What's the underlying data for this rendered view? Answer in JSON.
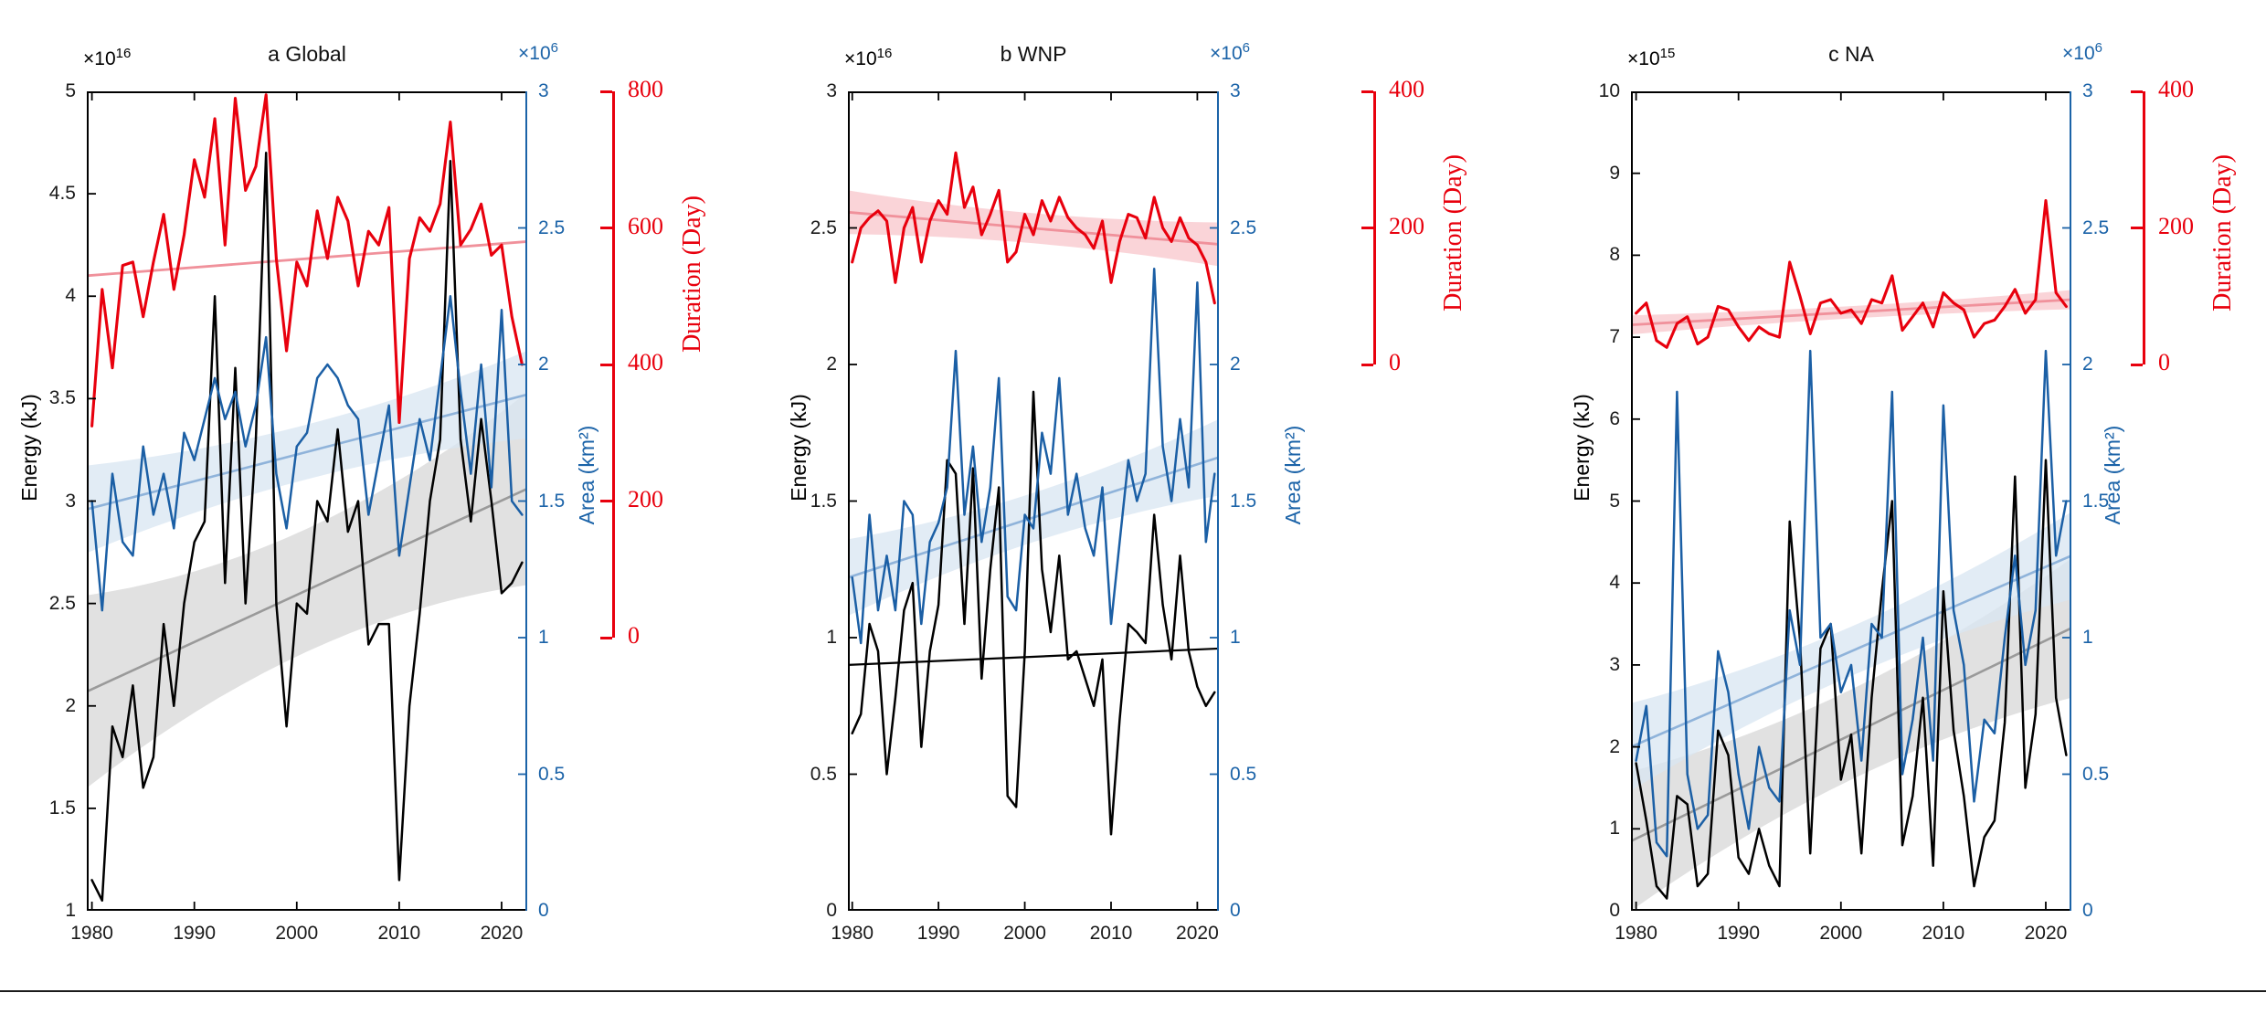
{
  "figure": {
    "background": "#ffffff",
    "colors": {
      "energy_line": "#000000",
      "energy_trend_gray": "#9a9a9a",
      "energy_band": "#d9d9d9",
      "area_line": "#1b5fa5",
      "area_axis": "#1b63a8",
      "area_trend": "#8fb3da",
      "area_band": "#d8e5f1",
      "duration_line": "#e8000d",
      "duration_trend": "#f0919b",
      "duration_band": "#f8c6cb",
      "axis_black": "#000000"
    }
  },
  "chart_data": [
    {
      "panel": "a",
      "type": "line",
      "title": "a Global",
      "years": [
        1980,
        1981,
        1982,
        1983,
        1984,
        1985,
        1986,
        1987,
        1988,
        1989,
        1990,
        1991,
        1992,
        1993,
        1994,
        1995,
        1996,
        1997,
        1998,
        1999,
        2000,
        2001,
        2002,
        2003,
        2004,
        2005,
        2006,
        2007,
        2008,
        2009,
        2010,
        2011,
        2012,
        2013,
        2014,
        2015,
        2016,
        2017,
        2018,
        2019,
        2020,
        2021,
        2022
      ],
      "x_axis": {
        "min": 1979.5,
        "max": 2022.5,
        "ticks": [
          1980,
          1990,
          2000,
          2010,
          2020
        ]
      },
      "energy": {
        "label": "Energy (kJ)",
        "exponent_base": "×10",
        "exponent_power": "16",
        "min": 1,
        "max": 5,
        "ticks": [
          1,
          1.5,
          2,
          2.5,
          3,
          3.5,
          4,
          4.5,
          5
        ],
        "values": [
          1.15,
          1.05,
          1.9,
          1.75,
          2.1,
          1.6,
          1.75,
          2.4,
          2.0,
          2.5,
          2.8,
          2.9,
          4.0,
          2.6,
          3.65,
          2.5,
          3.3,
          4.7,
          2.5,
          1.9,
          2.5,
          2.45,
          3.0,
          2.9,
          3.35,
          2.85,
          3.0,
          2.3,
          2.4,
          2.4,
          1.15,
          2.0,
          2.45,
          3.0,
          3.3,
          4.66,
          3.3,
          2.9,
          3.4,
          3.0,
          2.55,
          2.6,
          2.7
        ],
        "trend": {
          "start": 2.07,
          "end": 3.06,
          "band_half_mid": 0.3,
          "band_half_end": 0.47,
          "band": true,
          "color": "gray"
        }
      },
      "area": {
        "label": "Area (km²)",
        "exponent_base": "×10",
        "exponent_power": "6",
        "min": 0,
        "max": 3,
        "ticks": [
          0,
          0.5,
          1,
          1.5,
          2,
          2.5,
          3
        ],
        "values": [
          1.5,
          1.1,
          1.6,
          1.35,
          1.3,
          1.7,
          1.45,
          1.6,
          1.4,
          1.75,
          1.65,
          1.8,
          1.95,
          1.8,
          1.9,
          1.7,
          1.85,
          2.1,
          1.6,
          1.4,
          1.7,
          1.75,
          1.95,
          2.0,
          1.95,
          1.85,
          1.8,
          1.45,
          1.65,
          1.85,
          1.3,
          1.55,
          1.8,
          1.65,
          1.95,
          2.25,
          1.9,
          1.6,
          2.0,
          1.55,
          2.2,
          1.5,
          1.45
        ],
        "trend": {
          "start": 1.47,
          "end": 1.89,
          "band_half_mid": 0.1,
          "band_half_end": 0.16,
          "band": true
        }
      },
      "duration": {
        "label": "Duration (Day)",
        "min": 0,
        "max": 800,
        "ticks": [
          0,
          200,
          400,
          600,
          800
        ],
        "axis_zero_at_area": 1,
        "axis_top_at_area": 3,
        "values": [
          310,
          510,
          395,
          545,
          550,
          470,
          550,
          620,
          510,
          590,
          700,
          645,
          760,
          575,
          790,
          655,
          690,
          795,
          555,
          420,
          550,
          515,
          625,
          555,
          645,
          610,
          515,
          595,
          575,
          630,
          315,
          555,
          615,
          595,
          635,
          755,
          575,
          598,
          635,
          560,
          575,
          470,
          400
        ],
        "trend": {
          "start": 530,
          "end": 580,
          "band_half_mid": 0,
          "band_half_end": 0,
          "band": false
        }
      }
    },
    {
      "panel": "b",
      "type": "line",
      "title": "b WNP",
      "years": [
        1980,
        1981,
        1982,
        1983,
        1984,
        1985,
        1986,
        1987,
        1988,
        1989,
        1990,
        1991,
        1992,
        1993,
        1994,
        1995,
        1996,
        1997,
        1998,
        1999,
        2000,
        2001,
        2002,
        2003,
        2004,
        2005,
        2006,
        2007,
        2008,
        2009,
        2010,
        2011,
        2012,
        2013,
        2014,
        2015,
        2016,
        2017,
        2018,
        2019,
        2020,
        2021,
        2022
      ],
      "x_axis": {
        "min": 1979.5,
        "max": 2022.5,
        "ticks": [
          1980,
          1990,
          2000,
          2010,
          2020
        ]
      },
      "energy": {
        "label": "Energy (kJ)",
        "exponent_base": "×10",
        "exponent_power": "16",
        "min": 0,
        "max": 3,
        "ticks": [
          0,
          0.5,
          1,
          1.5,
          2,
          2.5,
          3
        ],
        "values": [
          0.65,
          0.72,
          1.05,
          0.95,
          0.5,
          0.78,
          1.1,
          1.2,
          0.6,
          0.95,
          1.12,
          1.65,
          1.6,
          1.05,
          1.62,
          0.85,
          1.25,
          1.55,
          0.42,
          0.38,
          0.95,
          1.9,
          1.25,
          1.02,
          1.3,
          0.92,
          0.95,
          0.85,
          0.75,
          0.92,
          0.28,
          0.7,
          1.05,
          1.02,
          0.98,
          1.45,
          1.12,
          0.92,
          1.3,
          0.95,
          0.82,
          0.75,
          0.8
        ],
        "trend": {
          "start": 0.9,
          "end": 0.96,
          "band_half_mid": 0,
          "band_half_end": 0,
          "band": false,
          "color": "black"
        }
      },
      "area": {
        "label": "Area (km²)",
        "exponent_base": "×10",
        "exponent_power": "6",
        "min": 0,
        "max": 3,
        "ticks": [
          0,
          0.5,
          1,
          1.5,
          2,
          2.5,
          3
        ],
        "values": [
          1.22,
          0.98,
          1.45,
          1.1,
          1.3,
          1.1,
          1.5,
          1.45,
          1.05,
          1.35,
          1.42,
          1.55,
          2.05,
          1.45,
          1.7,
          1.35,
          1.55,
          1.95,
          1.15,
          1.1,
          1.45,
          1.4,
          1.75,
          1.6,
          1.95,
          1.45,
          1.6,
          1.4,
          1.3,
          1.55,
          1.05,
          1.35,
          1.65,
          1.5,
          1.6,
          2.35,
          1.7,
          1.5,
          1.8,
          1.55,
          2.3,
          1.35,
          1.6
        ],
        "trend": {
          "start": 1.22,
          "end": 1.66,
          "band_half_mid": 0.09,
          "band_half_end": 0.14,
          "band": true
        }
      },
      "duration": {
        "label": "Duration (Day)",
        "min": 0,
        "max": 400,
        "ticks": [
          0,
          200,
          400
        ],
        "axis_zero_at_area": 2,
        "axis_top_at_area": 3,
        "values": [
          150,
          200,
          215,
          225,
          210,
          120,
          200,
          230,
          150,
          210,
          240,
          220,
          310,
          230,
          260,
          190,
          220,
          255,
          150,
          165,
          220,
          190,
          240,
          210,
          245,
          215,
          200,
          190,
          170,
          210,
          120,
          180,
          220,
          215,
          185,
          245,
          200,
          180,
          215,
          185,
          175,
          150,
          90
        ],
        "trend": {
          "start": 223,
          "end": 176,
          "band_half_mid": 22,
          "band_half_end": 32,
          "band": true
        }
      }
    },
    {
      "panel": "c",
      "type": "line",
      "title": "c NA",
      "years": [
        1980,
        1981,
        1982,
        1983,
        1984,
        1985,
        1986,
        1987,
        1988,
        1989,
        1990,
        1991,
        1992,
        1993,
        1994,
        1995,
        1996,
        1997,
        1998,
        1999,
        2000,
        2001,
        2002,
        2003,
        2004,
        2005,
        2006,
        2007,
        2008,
        2009,
        2010,
        2011,
        2012,
        2013,
        2014,
        2015,
        2016,
        2017,
        2018,
        2019,
        2020,
        2021,
        2022
      ],
      "x_axis": {
        "min": 1979.5,
        "max": 2022.5,
        "ticks": [
          1980,
          1990,
          2000,
          2010,
          2020
        ]
      },
      "energy": {
        "label": "Energy (kJ)",
        "exponent_base": "×10",
        "exponent_power": "15",
        "min": 0,
        "max": 10,
        "ticks": [
          0,
          1,
          2,
          3,
          4,
          5,
          6,
          7,
          8,
          9,
          10
        ],
        "values": [
          1.8,
          1.1,
          0.3,
          0.15,
          1.4,
          1.3,
          0.3,
          0.45,
          2.2,
          1.9,
          0.65,
          0.45,
          1.0,
          0.55,
          0.3,
          4.75,
          3.3,
          0.7,
          3.2,
          3.5,
          1.6,
          2.15,
          0.7,
          2.6,
          3.9,
          5.0,
          0.8,
          1.4,
          2.6,
          0.55,
          3.9,
          2.2,
          1.4,
          0.3,
          0.9,
          1.1,
          2.3,
          5.3,
          1.5,
          2.4,
          5.5,
          2.6,
          1.9
        ],
        "trend": {
          "start": 0.85,
          "end": 3.45,
          "band_half_mid": 0.55,
          "band_half_end": 0.85,
          "band": true,
          "color": "gray"
        }
      },
      "area": {
        "label": "Area (km²)",
        "exponent_base": "×10",
        "exponent_power": "6",
        "min": 0,
        "max": 3,
        "ticks": [
          0,
          0.5,
          1,
          1.5,
          2,
          2.5,
          3
        ],
        "values": [
          0.55,
          0.75,
          0.25,
          0.2,
          1.9,
          0.5,
          0.3,
          0.35,
          0.95,
          0.8,
          0.5,
          0.3,
          0.6,
          0.45,
          0.4,
          1.1,
          0.9,
          2.05,
          1.0,
          1.05,
          0.8,
          0.9,
          0.55,
          1.05,
          1.0,
          1.9,
          0.5,
          0.7,
          1.0,
          0.55,
          1.85,
          1.1,
          0.9,
          0.4,
          0.7,
          0.65,
          1.0,
          1.3,
          0.9,
          1.1,
          2.05,
          1.3,
          1.5
        ],
        "trend": {
          "start": 0.6,
          "end": 1.3,
          "band_half_mid": 0.09,
          "band_half_end": 0.16,
          "band": true
        }
      },
      "duration": {
        "label": "Duration (Day)",
        "min": 0,
        "max": 400,
        "ticks": [
          0,
          200,
          400
        ],
        "axis_zero_at_area": 2,
        "axis_top_at_area": 3,
        "values": [
          75,
          90,
          35,
          25,
          60,
          70,
          30,
          40,
          85,
          80,
          55,
          35,
          55,
          45,
          40,
          150,
          100,
          45,
          90,
          95,
          75,
          80,
          60,
          95,
          90,
          130,
          50,
          70,
          90,
          55,
          105,
          90,
          80,
          40,
          60,
          65,
          85,
          110,
          75,
          95,
          240,
          105,
          85
        ],
        "trend": {
          "start": 58,
          "end": 95,
          "band_half_mid": 9,
          "band_half_end": 14,
          "band": true
        }
      }
    }
  ]
}
